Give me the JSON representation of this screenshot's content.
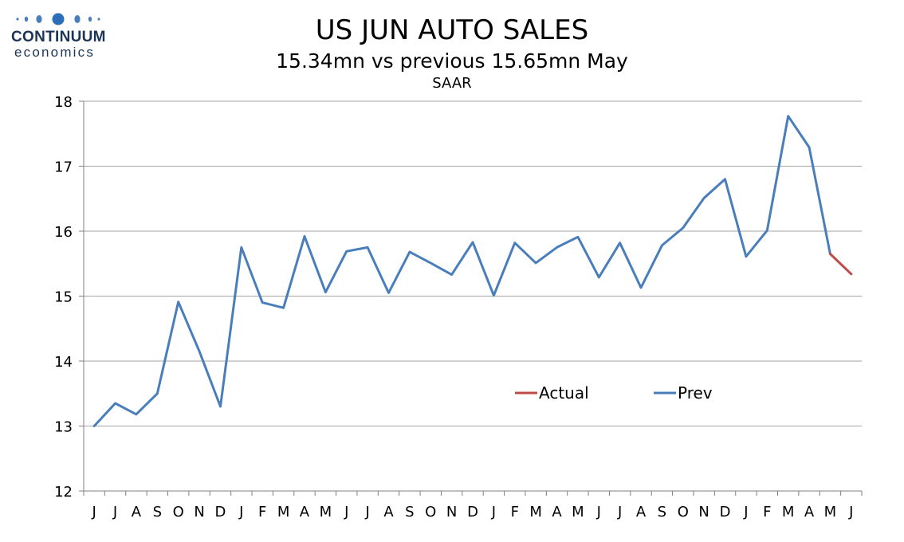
{
  "logo": {
    "word": "CONTINUUM",
    "sub": "economics"
  },
  "chart_data": {
    "type": "line",
    "title": "US JUN AUTO SALES",
    "subtitle": "15.34mn vs previous 15.65mn May",
    "note": "SAAR",
    "xlabel": "",
    "ylabel": "",
    "ylim": [
      12,
      18
    ],
    "yticks": [
      "12",
      "13",
      "14",
      "15",
      "16",
      "17",
      "18"
    ],
    "categories": [
      "J",
      "J",
      "A",
      "S",
      "O",
      "N",
      "D",
      "J",
      "F",
      "M",
      "A",
      "M",
      "J",
      "J",
      "A",
      "S",
      "O",
      "N",
      "D",
      "J",
      "F",
      "M",
      "A",
      "M",
      "J",
      "J",
      "A",
      "S",
      "O",
      "N",
      "D",
      "J",
      "F",
      "M",
      "A",
      "M",
      "J"
    ],
    "grid": true,
    "legend_placement": "center-right",
    "series": [
      {
        "name": "Actual",
        "color": "#be4b48",
        "values": [
          null,
          null,
          null,
          null,
          null,
          null,
          null,
          null,
          null,
          null,
          null,
          null,
          null,
          null,
          null,
          null,
          null,
          null,
          null,
          null,
          null,
          null,
          null,
          null,
          null,
          null,
          null,
          null,
          null,
          null,
          null,
          null,
          null,
          null,
          null,
          15.65,
          15.34
        ]
      },
      {
        "name": "Prev",
        "color": "#4a7ebb",
        "values": [
          13.0,
          13.35,
          13.18,
          13.5,
          14.91,
          14.15,
          13.3,
          15.75,
          14.9,
          14.82,
          15.92,
          15.06,
          15.69,
          15.75,
          15.05,
          15.68,
          15.51,
          15.33,
          15.83,
          15.01,
          15.82,
          15.51,
          15.75,
          15.91,
          15.29,
          15.82,
          15.13,
          15.78,
          16.05,
          16.51,
          16.8,
          15.61,
          16.01,
          17.77,
          17.29,
          15.65,
          null
        ]
      }
    ]
  }
}
